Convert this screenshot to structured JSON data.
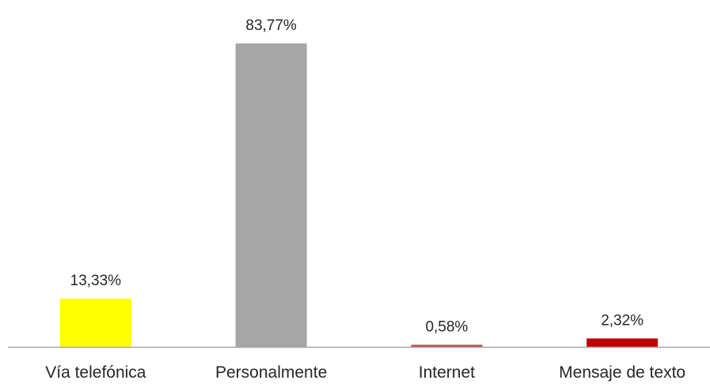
{
  "chart_data": {
    "type": "bar",
    "categories": [
      "Vía telefónica",
      "Personalmente",
      "Internet",
      "Mensaje de texto"
    ],
    "values": [
      13.33,
      83.77,
      0.58,
      2.32
    ],
    "data_labels": [
      "13,33%",
      "83,77%",
      "0,58%",
      "2,32%"
    ],
    "colors": [
      "#ffff00",
      "#a6a6a6",
      "#c0504d",
      "#c00000"
    ],
    "title": "",
    "xlabel": "",
    "ylabel": "",
    "ylim": [
      0,
      85
    ],
    "grid": false,
    "legend": "none",
    "axis_color": "#a6a6a6"
  }
}
